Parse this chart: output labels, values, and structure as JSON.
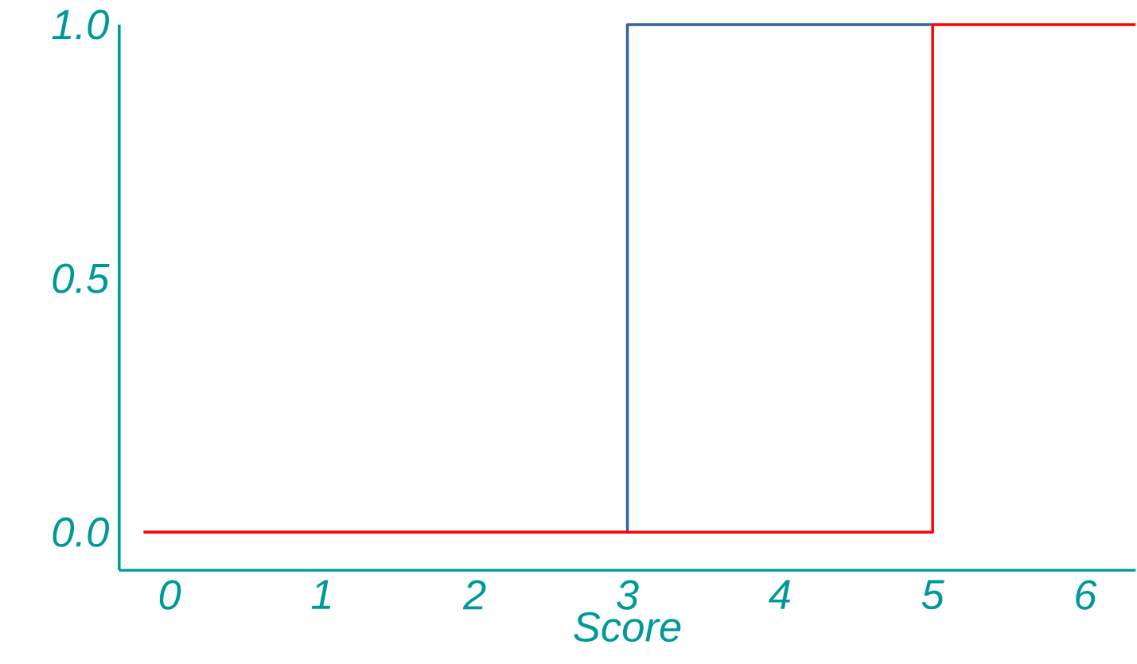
{
  "chart_data": {
    "type": "step",
    "xlabel": "Score",
    "xlim": [
      -0.33,
      6.33
    ],
    "ylim": [
      -0.075,
      1.0
    ],
    "xticks": [
      0,
      1,
      2,
      3,
      4,
      5,
      6
    ],
    "yticks": [
      {
        "value": 0,
        "label": "0.0"
      },
      {
        "value": 0.5,
        "label": "0.5"
      },
      {
        "value": 1,
        "label": "1.0"
      }
    ],
    "grid": false,
    "legend": false,
    "marker": "none",
    "line_style": "solid",
    "series": [
      {
        "color": "#336699",
        "x": [
          -0.17,
          3,
          5
        ],
        "values": [
          0,
          1,
          1
        ]
      },
      {
        "color": "#ff0000",
        "x": [
          -0.17,
          5,
          6.33
        ],
        "values": [
          0,
          1,
          1
        ]
      }
    ]
  }
}
